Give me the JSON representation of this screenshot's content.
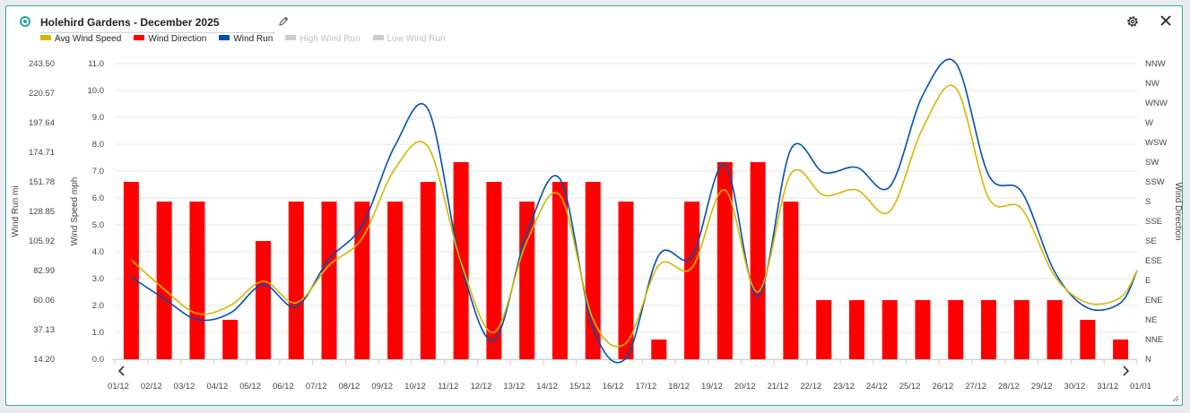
{
  "header": {
    "title": "Holehird Gardens - December 2025"
  },
  "icons": {
    "status": "status-dot-icon",
    "edit": "pencil-icon",
    "settings": "gear-icon",
    "close": "close-icon"
  },
  "colors": {
    "avg": "#d4b800",
    "dir": "#ff0000",
    "run": "#0050b4",
    "disabled": "#cccccc",
    "accent": "#26a69a"
  },
  "legend": [
    {
      "label": "Avg Wind Speed",
      "color": "#d4b800",
      "enabled": true
    },
    {
      "label": "Wind Direction",
      "color": "#ff0000",
      "enabled": true
    },
    {
      "label": "Wind Run",
      "color": "#0050b4",
      "enabled": true
    },
    {
      "label": "High Wind Run",
      "color": "#cccccc",
      "enabled": false
    },
    {
      "label": "Low Wind Run",
      "color": "#cccccc",
      "enabled": false
    }
  ],
  "chart_data": {
    "type": "bar+line",
    "title": "Holehird Gardens - December 2025",
    "categories": [
      "01/12",
      "02/12",
      "03/12",
      "04/12",
      "05/12",
      "06/12",
      "07/12",
      "08/12",
      "09/12",
      "10/12",
      "11/12",
      "12/12",
      "13/12",
      "14/12",
      "15/12",
      "16/12",
      "17/12",
      "18/12",
      "19/12",
      "20/12",
      "21/12",
      "22/12",
      "23/12",
      "24/12",
      "25/12",
      "26/12",
      "27/12",
      "28/12",
      "29/12",
      "30/12",
      "31/12",
      "01/01"
    ],
    "axes": {
      "wind_run": {
        "label": "Wind Run mi",
        "ticks": [
          "243.50",
          "220.57",
          "197.64",
          "174.71",
          "151.78",
          "128.85",
          "105.92",
          "82.99",
          "60.06",
          "37.13",
          "14.20"
        ],
        "range": [
          14.2,
          243.5
        ]
      },
      "wind_speed": {
        "label": "Wind Speed mph",
        "ticks": [
          "11.0",
          "10.0",
          "9.0",
          "8.0",
          "7.0",
          "6.0",
          "5.0",
          "4.0",
          "3.0",
          "2.0",
          "1.0",
          "0.0"
        ],
        "range": [
          0,
          11
        ]
      },
      "wind_direction": {
        "label": "Wind Direction",
        "ticks": [
          "NNW",
          "NW",
          "WNW",
          "W",
          "WSW",
          "SW",
          "SSW",
          "S",
          "SSE",
          "SE",
          "ESE",
          "E",
          "ENE",
          "NE",
          "NNE",
          "N"
        ]
      }
    },
    "series": [
      {
        "name": "Wind Direction",
        "type": "bar",
        "values": [
          "SSW",
          "S",
          "S",
          "NE",
          "SE",
          "S",
          "S",
          "S",
          "S",
          "SSW",
          "SW",
          "SSW",
          "S",
          "SSW",
          "SSW",
          "S",
          "NNE",
          "S",
          "SW",
          "SW",
          "S",
          "ENE",
          "ENE",
          "ENE",
          "ENE",
          "ENE",
          "ENE",
          "ENE",
          "ENE",
          "NE",
          "NNE",
          null
        ]
      },
      {
        "name": "Avg Wind Speed",
        "type": "line",
        "values": [
          3.7,
          2.6,
          1.7,
          2.0,
          2.9,
          2.1,
          3.5,
          4.5,
          7.1,
          7.9,
          3.6,
          1.0,
          4.4,
          6.1,
          1.5,
          0.6,
          3.5,
          3.4,
          6.3,
          2.5,
          6.9,
          6.1,
          6.3,
          5.5,
          8.6,
          10.1,
          6.0,
          5.6,
          3.1,
          2.1,
          2.3,
          3.3
        ]
      },
      {
        "name": "Wind Run",
        "type": "line",
        "values": [
          78,
          61,
          45,
          50,
          72,
          55,
          92,
          118,
          180,
          208,
          88,
          29,
          112,
          154,
          39,
          15,
          95,
          94,
          165,
          63,
          177,
          159,
          163,
          148,
          219,
          244,
          157,
          144,
          82,
          54,
          58,
          83
        ]
      }
    ],
    "grid": true,
    "legend_position": "top-left"
  }
}
